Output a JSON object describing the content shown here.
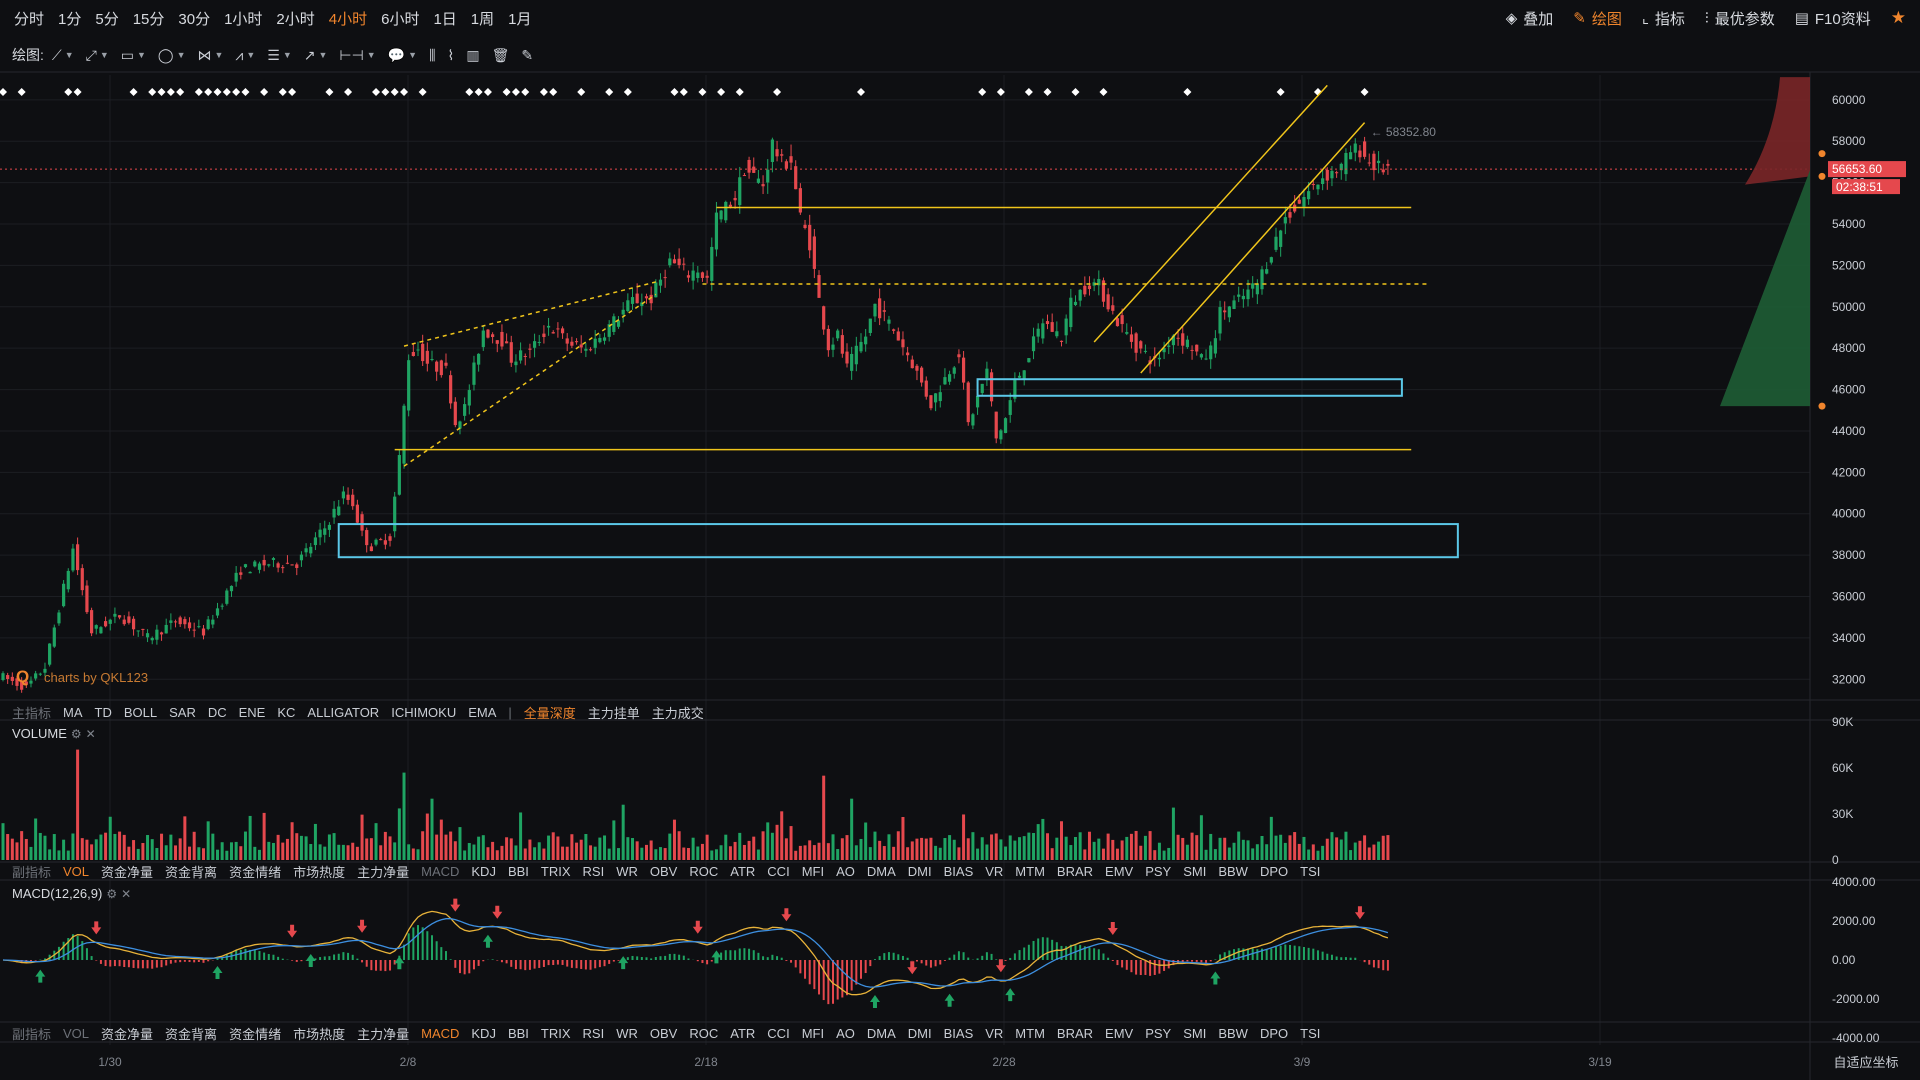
{
  "toolbar": {
    "periods": [
      "分时",
      "1分",
      "5分",
      "15分",
      "30分",
      "1小时",
      "2小时",
      "4小时",
      "6小时",
      "1日",
      "1周",
      "1月"
    ],
    "active_period": "4小时",
    "right": [
      {
        "label": "叠加",
        "icon": "layers-icon"
      },
      {
        "label": "绘图",
        "icon": "pen-icon",
        "active": true
      },
      {
        "label": "指标",
        "icon": "indicator-icon"
      },
      {
        "label": "最优参数",
        "icon": "params-icon"
      },
      {
        "label": "F10资料",
        "icon": "f10-icon"
      }
    ]
  },
  "drawbar": {
    "label": "绘图:"
  },
  "main_indicators": {
    "label": "主指标",
    "items": [
      "MA",
      "TD",
      "BOLL",
      "SAR",
      "DC",
      "ENE",
      "KC",
      "ALLIGATOR",
      "ICHIMOKU",
      "EMA"
    ],
    "extra": [
      "全量深度",
      "主力挂单",
      "主力成交"
    ],
    "active_extra": "全量深度"
  },
  "sub_indicators": {
    "label": "副指标",
    "items": [
      "VOL",
      "资金净量",
      "资金背离",
      "资金情绪",
      "市场热度",
      "主力净量",
      "MACD",
      "KDJ",
      "BBI",
      "TRIX",
      "RSI",
      "WR",
      "OBV",
      "ROC",
      "ATR",
      "CCI",
      "MFI",
      "AO",
      "DMA",
      "DMI",
      "BIAS",
      "VR",
      "MTM",
      "BRAR",
      "EMV",
      "PSY",
      "SMI",
      "BBW",
      "DPO",
      "TSI"
    ]
  },
  "panels": {
    "volume_title": "VOLUME",
    "macd_title": "MACD(12,26,9)"
  },
  "watermark": "charts by QKL123",
  "footer": {
    "auto_axis": "自适应坐标"
  },
  "colors": {
    "up": "#1fa463",
    "down": "#e5484d",
    "accent": "#f0852d",
    "line": "#f0c51b",
    "box": "#5bc8e8"
  },
  "chart_data": {
    "type": "candlestick",
    "price_axis": {
      "ticks": [
        60000,
        58000,
        56000,
        54000,
        52000,
        50000,
        48000,
        46000,
        44000,
        42000,
        40000,
        38000,
        36000,
        34000,
        32000
      ],
      "range": [
        31000,
        61200
      ]
    },
    "x_labels": [
      "1/30",
      "2/8",
      "2/18",
      "2/28",
      "3/9",
      "3/19"
    ],
    "last_price": "56653.60",
    "countdown": "02:38:51",
    "high_label": "58352.80",
    "anchors": [
      [
        0,
        32200
      ],
      [
        6,
        31600
      ],
      [
        10,
        32600
      ],
      [
        16,
        38300
      ],
      [
        20,
        34300
      ],
      [
        26,
        35100
      ],
      [
        32,
        34000
      ],
      [
        38,
        34800
      ],
      [
        44,
        34300
      ],
      [
        52,
        37300
      ],
      [
        58,
        37600
      ],
      [
        64,
        37600
      ],
      [
        70,
        39300
      ],
      [
        74,
        40900
      ],
      [
        76,
        40500
      ],
      [
        78,
        39000
      ],
      [
        80,
        38400
      ],
      [
        84,
        38900
      ],
      [
        86,
        42700
      ],
      [
        88,
        47600
      ],
      [
        90,
        48000
      ],
      [
        92,
        47300
      ],
      [
        96,
        46900
      ],
      [
        98,
        44400
      ],
      [
        100,
        45100
      ],
      [
        104,
        48900
      ],
      [
        108,
        48400
      ],
      [
        110,
        47500
      ],
      [
        114,
        47800
      ],
      [
        118,
        49100
      ],
      [
        122,
        48300
      ],
      [
        126,
        47900
      ],
      [
        132,
        49300
      ],
      [
        136,
        50300
      ],
      [
        140,
        50400
      ],
      [
        144,
        52200
      ],
      [
        148,
        51600
      ],
      [
        150,
        51800
      ],
      [
        152,
        51300
      ],
      [
        154,
        54300
      ],
      [
        158,
        55300
      ],
      [
        160,
        56700
      ],
      [
        164,
        55900
      ],
      [
        166,
        57900
      ],
      [
        168,
        56900
      ],
      [
        170,
        57100
      ],
      [
        172,
        54300
      ],
      [
        174,
        53100
      ],
      [
        176,
        50300
      ],
      [
        178,
        48100
      ],
      [
        180,
        48600
      ],
      [
        182,
        47000
      ],
      [
        186,
        48600
      ],
      [
        188,
        50100
      ],
      [
        192,
        48900
      ],
      [
        196,
        47300
      ],
      [
        200,
        45300
      ],
      [
        206,
        47800
      ],
      [
        208,
        44300
      ],
      [
        212,
        46900
      ],
      [
        214,
        43600
      ],
      [
        216,
        44600
      ],
      [
        218,
        46300
      ],
      [
        220,
        47200
      ],
      [
        224,
        49300
      ],
      [
        228,
        48500
      ],
      [
        230,
        50200
      ],
      [
        234,
        51200
      ],
      [
        236,
        51000
      ],
      [
        240,
        49300
      ],
      [
        244,
        48100
      ],
      [
        248,
        47300
      ],
      [
        252,
        48700
      ],
      [
        256,
        48100
      ],
      [
        258,
        47400
      ],
      [
        260,
        47900
      ],
      [
        262,
        49700
      ],
      [
        266,
        50300
      ],
      [
        270,
        51100
      ],
      [
        276,
        54300
      ],
      [
        280,
        55300
      ],
      [
        284,
        56300
      ],
      [
        288,
        56700
      ],
      [
        290,
        57500
      ],
      [
        292,
        57600
      ],
      [
        294,
        57000
      ],
      [
        296,
        56700
      ]
    ],
    "volume_axis": {
      "ticks": [
        "90K",
        "60K",
        "30K",
        "0"
      ],
      "max": 90000
    },
    "macd_axis": {
      "ticks": [
        "4000.00",
        "2000.00",
        "0.00",
        "-2000.00",
        "-4000.00"
      ],
      "range": [
        -4000,
        4000
      ]
    },
    "drawings": [
      {
        "kind": "hline",
        "price": 54800,
        "from": 153,
        "to": 302
      },
      {
        "kind": "hline",
        "price": 43100,
        "from": 84,
        "to": 302
      },
      {
        "kind": "hline_dashed",
        "price": 51100,
        "from": 150,
        "to": 306
      },
      {
        "kind": "channel",
        "a": [
          [
            86,
            42300
          ],
          [
            140,
            50600
          ]
        ],
        "b": [
          [
            86,
            48100
          ],
          [
            140,
            51200
          ]
        ],
        "dashed": true
      },
      {
        "kind": "channel",
        "a": [
          [
            234,
            48300
          ],
          [
            284,
            60700
          ]
        ],
        "b": [
          [
            244,
            46800
          ],
          [
            292,
            58900
          ]
        ]
      },
      {
        "kind": "box",
        "p1": [
          209,
          46500
        ],
        "p2": [
          300,
          45700
        ]
      },
      {
        "kind": "box",
        "p1": [
          72,
          39500
        ],
        "p2": [
          312,
          37900
        ]
      }
    ]
  }
}
